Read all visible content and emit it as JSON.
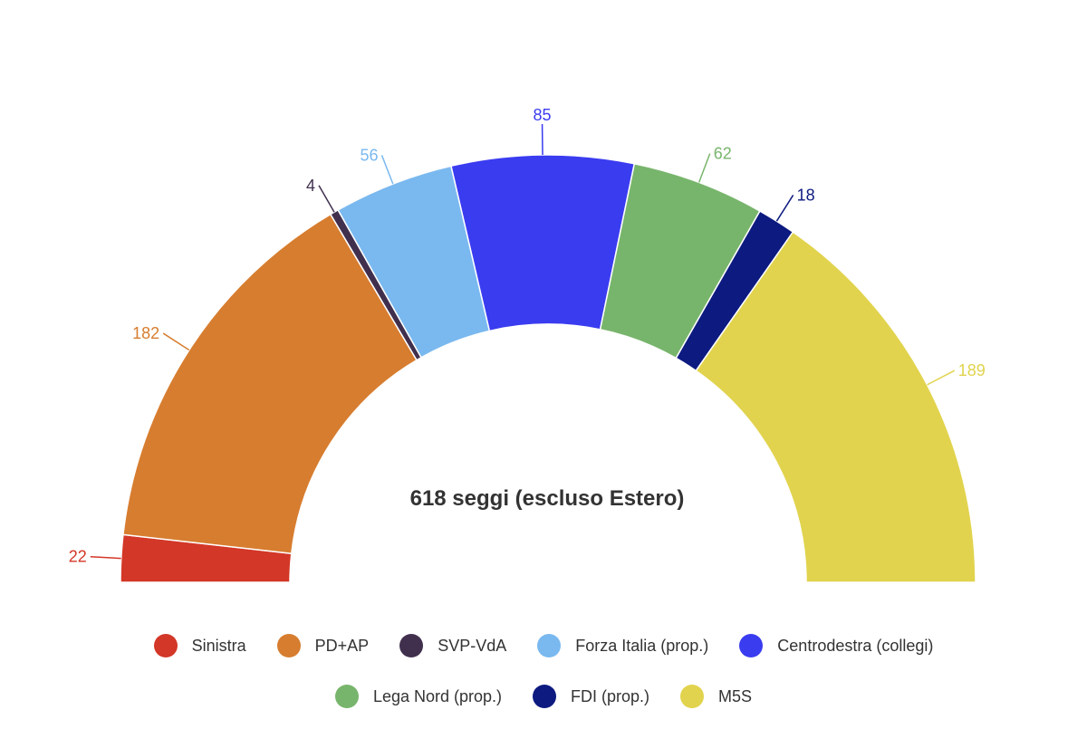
{
  "chart_data": {
    "type": "pie",
    "variant": "semi-donut",
    "title": "618 seggi (escluso Estero)",
    "total": 618,
    "slices": [
      {
        "label": "Sinistra",
        "value": 22,
        "color": "#d33727"
      },
      {
        "label": "PD+AP",
        "value": 182,
        "color": "#d77d2f"
      },
      {
        "label": "SVP-VdA",
        "value": 4,
        "color": "#40304e"
      },
      {
        "label": "Forza Italia (prop.)",
        "value": 56,
        "color": "#7ab9ef"
      },
      {
        "label": "Centrodestra (collegi)",
        "value": 85,
        "color": "#3a3cf0"
      },
      {
        "label": "Lega Nord (prop.)",
        "value": 62,
        "color": "#78b56c"
      },
      {
        "label": "FDI (prop.)",
        "value": 18,
        "color": "#0d1a80"
      },
      {
        "label": "M5S",
        "value": 189,
        "color": "#e1d34d"
      }
    ],
    "legend_position": "bottom"
  }
}
